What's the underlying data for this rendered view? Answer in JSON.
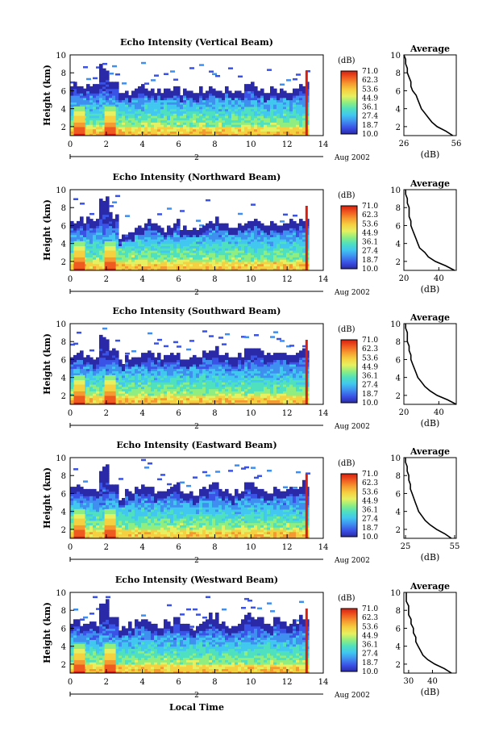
{
  "figure": {
    "x_axis_label": "Local Time",
    "date_label": "Aug 2002",
    "day_marker": "2",
    "y_axis_label": "Height (km)",
    "colorbar_unit": "(dB)",
    "colorbar_ticks": [
      "71.0",
      "62.3",
      "53.6",
      "44.9",
      "36.1",
      "27.4",
      "18.7",
      "10.0"
    ],
    "average_title": "Average",
    "average_xlabel": "(dB)",
    "colors": {
      "colormap": [
        "#2a2aa8",
        "#3b52e6",
        "#3f8ff0",
        "#41c7f0",
        "#4fe0c0",
        "#90ee80",
        "#e6f060",
        "#f5d040",
        "#f59a30",
        "#ef5a20",
        "#d81e10"
      ],
      "background": "#ffffff"
    }
  },
  "chart_data": [
    {
      "type": "heatmap",
      "title": "Echo Intensity (Vertical Beam)",
      "xlabel": "",
      "ylabel": "Height (km)",
      "xlim": [
        0,
        14
      ],
      "ylim": [
        1,
        10
      ],
      "x_ticks": [
        0,
        2,
        4,
        6,
        8,
        10,
        12,
        14
      ],
      "y_ticks": [
        2,
        4,
        6,
        8,
        10
      ],
      "colorbar": {
        "unit": "(dB)",
        "min": 10.0,
        "max": 71.0
      },
      "cloud_top_km": [
        6.5,
        6.4,
        6.2,
        8.6,
        6.8,
        5.4,
        5.7,
        6.4,
        6.2,
        5.9,
        6.0,
        6.1,
        5.8,
        5.6,
        5.9,
        6.2,
        6.0,
        5.7,
        5.9,
        6.4,
        6.2,
        5.9,
        6.1,
        5.8,
        6.0,
        6.5
      ],
      "rain_columns_hours": [
        0.2,
        1.9
      ],
      "data_end_hour": 13.1,
      "average_profile": {
        "title": "Average",
        "xlabel": "(dB)",
        "xlim": [
          26,
          56
        ],
        "x_ticks": [
          26,
          56
        ],
        "y_ticks": [
          2,
          4,
          6,
          8,
          10
        ],
        "height_km": [
          1.0,
          1.5,
          2.0,
          2.5,
          3.0,
          3.5,
          4.0,
          4.5,
          5.0,
          5.5,
          6.0,
          6.5,
          7.0,
          7.5,
          8.0,
          8.5,
          9.0,
          9.5,
          10.0
        ],
        "values": [
          54,
          50,
          45,
          42,
          40,
          38,
          36,
          35,
          34,
          33,
          31,
          30,
          30,
          29,
          28,
          28,
          27,
          27,
          26
        ]
      }
    },
    {
      "type": "heatmap",
      "title": "Echo Intensity (Northward Beam)",
      "xlabel": "",
      "ylabel": "Height (km)",
      "xlim": [
        0,
        14
      ],
      "ylim": [
        1,
        10
      ],
      "x_ticks": [
        0,
        2,
        4,
        6,
        8,
        10,
        12,
        14
      ],
      "y_ticks": [
        2,
        4,
        6,
        8,
        10
      ],
      "colorbar": {
        "unit": "(dB)",
        "min": 10.0,
        "max": 71.0
      },
      "cloud_top_km": [
        6.3,
        6.5,
        6.3,
        8.8,
        6.9,
        4.8,
        5.2,
        5.6,
        6.3,
        5.8,
        5.5,
        6.2,
        5.6,
        5.3,
        5.8,
        6.4,
        5.9,
        5.6,
        5.7,
        6.3,
        6.6,
        6.0,
        6.3,
        6.1,
        6.2,
        6.7
      ],
      "rain_columns_hours": [
        0.2,
        1.9
      ],
      "data_end_hour": 13.1,
      "average_profile": {
        "title": "Average",
        "xlabel": "(dB)",
        "xlim": [
          20,
          50
        ],
        "x_ticks": [
          20,
          40
        ],
        "y_ticks": [
          2,
          4,
          6,
          8,
          10
        ],
        "height_km": [
          1.0,
          1.5,
          2.0,
          2.5,
          3.0,
          3.5,
          4.0,
          4.5,
          5.0,
          5.5,
          6.0,
          6.5,
          7.0,
          7.5,
          8.0,
          8.5,
          9.0,
          9.5,
          10.0
        ],
        "values": [
          49,
          44,
          38,
          34,
          32,
          29,
          28,
          27,
          26,
          25,
          24,
          24,
          23,
          23,
          23,
          22,
          22,
          21,
          21
        ]
      }
    },
    {
      "type": "heatmap",
      "title": "Echo Intensity (Southward Beam)",
      "xlabel": "",
      "ylabel": "Height (km)",
      "xlim": [
        0,
        14
      ],
      "ylim": [
        1,
        10
      ],
      "x_ticks": [
        0,
        2,
        4,
        6,
        8,
        10,
        12,
        14
      ],
      "y_ticks": [
        2,
        4,
        6,
        8,
        10
      ],
      "colorbar": {
        "unit": "(dB)",
        "min": 10.0,
        "max": 71.0
      },
      "cloud_top_km": [
        6.4,
        6.6,
        6.1,
        8.4,
        6.7,
        5.6,
        6.0,
        6.3,
        6.6,
        6.2,
        6.4,
        6.7,
        6.1,
        5.9,
        6.5,
        7.0,
        6.3,
        6.0,
        6.4,
        7.2,
        6.8,
        6.2,
        6.6,
        6.3,
        6.5,
        7.0
      ],
      "rain_columns_hours": [
        0.2,
        1.9
      ],
      "data_end_hour": 13.1,
      "average_profile": {
        "title": "Average",
        "xlabel": "(dB)",
        "xlim": [
          20,
          50
        ],
        "x_ticks": [
          20,
          40
        ],
        "y_ticks": [
          2,
          4,
          6,
          8,
          10
        ],
        "height_km": [
          1.0,
          1.5,
          2.0,
          2.5,
          3.0,
          3.5,
          4.0,
          4.5,
          5.0,
          5.5,
          6.0,
          6.5,
          7.0,
          7.5,
          8.0,
          8.5,
          9.0,
          9.5,
          10.0
        ],
        "values": [
          50,
          45,
          39,
          35,
          32,
          30,
          28,
          27,
          26,
          25,
          24,
          24,
          23,
          23,
          22,
          22,
          22,
          21,
          21
        ]
      }
    },
    {
      "type": "heatmap",
      "title": "Echo Intensity (Eastward Beam)",
      "xlabel": "",
      "ylabel": "Height (km)",
      "xlim": [
        0,
        14
      ],
      "ylim": [
        1,
        10
      ],
      "x_ticks": [
        0,
        2,
        4,
        6,
        8,
        10,
        12,
        14
      ],
      "y_ticks": [
        2,
        4,
        6,
        8,
        10
      ],
      "colorbar": {
        "unit": "(dB)",
        "min": 10.0,
        "max": 71.0
      },
      "cloud_top_km": [
        6.5,
        6.3,
        6.2,
        8.7,
        6.8,
        5.5,
        6.1,
        6.6,
        6.2,
        6.0,
        6.4,
        6.9,
        6.0,
        5.8,
        6.3,
        6.8,
        6.2,
        5.9,
        6.2,
        6.9,
        6.5,
        6.0,
        6.4,
        6.1,
        6.3,
        6.9
      ],
      "rain_columns_hours": [
        0.2,
        1.9
      ],
      "data_end_hour": 13.1,
      "average_profile": {
        "title": "Average",
        "xlabel": "(dB)",
        "xlim": [
          24,
          56
        ],
        "x_ticks": [
          25,
          55
        ],
        "y_ticks": [
          2,
          4,
          6,
          8,
          10
        ],
        "height_km": [
          1.0,
          1.5,
          2.0,
          2.5,
          3.0,
          3.5,
          4.0,
          4.5,
          5.0,
          5.5,
          6.0,
          6.5,
          7.0,
          7.5,
          8.0,
          8.5,
          9.0,
          9.5,
          10.0
        ],
        "values": [
          53,
          49,
          44,
          40,
          37,
          35,
          33,
          32,
          31,
          30,
          29,
          28,
          28,
          27,
          27,
          26,
          26,
          25,
          25
        ]
      }
    },
    {
      "type": "heatmap",
      "title": "Echo Intensity (Westward Beam)",
      "xlabel": "Local Time",
      "ylabel": "Height (km)",
      "xlim": [
        0,
        14
      ],
      "ylim": [
        1,
        10
      ],
      "x_ticks": [
        0,
        2,
        4,
        6,
        8,
        10,
        12,
        14
      ],
      "y_ticks": [
        2,
        4,
        6,
        8,
        10
      ],
      "colorbar": {
        "unit": "(dB)",
        "min": 10.0,
        "max": 71.0
      },
      "cloud_top_km": [
        6.6,
        6.5,
        6.3,
        8.9,
        6.9,
        5.7,
        6.3,
        6.8,
        6.5,
        6.2,
        6.6,
        7.0,
        6.3,
        6.0,
        6.6,
        7.2,
        6.4,
        6.1,
        6.5,
        7.3,
        6.9,
        6.3,
        6.7,
        6.4,
        6.6,
        7.1
      ],
      "rain_columns_hours": [
        0.2,
        1.9
      ],
      "data_end_hour": 13.1,
      "average_profile": {
        "title": "Average",
        "xlabel": "(dB)",
        "xlim": [
          28,
          50
        ],
        "x_ticks": [
          30,
          40
        ],
        "y_ticks": [
          2,
          4,
          6,
          8,
          10
        ],
        "height_km": [
          1.0,
          1.5,
          2.0,
          2.5,
          3.0,
          3.5,
          4.0,
          4.5,
          5.0,
          5.5,
          6.0,
          6.5,
          7.0,
          7.5,
          8.0,
          8.5,
          9.0,
          9.5,
          10.0
        ],
        "values": [
          48,
          45,
          41,
          38,
          36,
          35,
          34,
          33,
          33,
          32,
          32,
          31,
          31,
          30,
          30,
          30,
          29,
          29,
          29
        ]
      }
    }
  ]
}
